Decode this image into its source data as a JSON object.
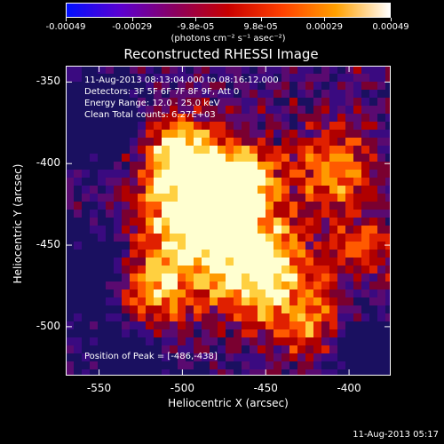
{
  "colorbar": {
    "ticks": [
      "-0.00049",
      "-0.00029",
      "-9.8e-05",
      "9.8e-05",
      "0.00029",
      "0.00049"
    ],
    "tick_values": [
      -0.00049,
      -0.00029,
      -9.8e-05,
      9.8e-05,
      0.00029,
      0.00049
    ],
    "range": [
      -0.00049,
      0.00049
    ],
    "units": "(photons cm⁻² s⁻¹ asec⁻²)",
    "colors": [
      "#0010ff",
      "#5b00d0",
      "#8a0060",
      "#c80000",
      "#ff4000",
      "#ffa000",
      "#ffffff"
    ]
  },
  "title": "Reconstructed RHESSI Image",
  "info": {
    "line1": "11-Aug-2013 08:13:04.000 to 08:16:12.000",
    "line2": "Detectors: 3F 5F 6F 7F 8F 9F, Att 0",
    "line3": "Energy Range: 12.0 - 25.0 keV",
    "line4": "Clean     Total counts: 6.27E+03"
  },
  "peak": "Position of Peak = [-486,-438]",
  "axes": {
    "xlabel": "Heliocentric X (arcsec)",
    "ylabel": "Heliocentric Y (arcsec)",
    "xlim": [
      -570,
      -375
    ],
    "ylim": [
      -530,
      -340
    ],
    "xticks": [
      "-550",
      "-500",
      "-450",
      "-400"
    ],
    "xtick_values": [
      -550,
      -500,
      -450,
      -400
    ],
    "yticks": [
      "-350",
      "-400",
      "-450",
      "-500"
    ],
    "ytick_values": [
      -350,
      -400,
      -450,
      -500
    ]
  },
  "timestamp": "11-Aug-2013 05:17"
}
